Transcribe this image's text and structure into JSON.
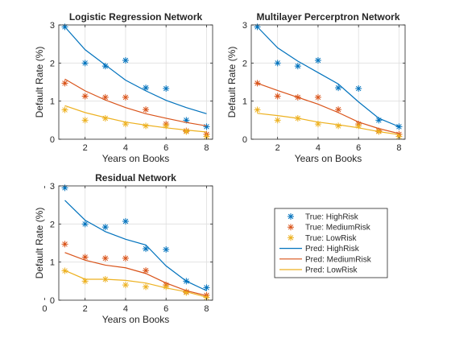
{
  "colors": {
    "high": "#0072BD",
    "medium": "#D95319",
    "low": "#EDB120",
    "grid": "#dfdfdf",
    "axis": "#262626"
  },
  "legend": {
    "placement": "bottom-right",
    "entries": [
      {
        "label": "True: HighRisk",
        "style": "marker",
        "series": "high"
      },
      {
        "label": "True: MediumRisk",
        "style": "marker",
        "series": "medium"
      },
      {
        "label": "True: LowRisk",
        "style": "marker",
        "series": "low"
      },
      {
        "label": "Pred: HighRisk",
        "style": "line",
        "series": "high"
      },
      {
        "label": "Pred: MediumRisk",
        "style": "line",
        "series": "medium"
      },
      {
        "label": "Pred: LowRisk",
        "style": "line",
        "series": "low"
      }
    ]
  },
  "chart_data": [
    {
      "type": "line",
      "title": "Logistic Regression Network",
      "xlabel": "Years on Books",
      "ylabel": "Default Rate (%)",
      "xlim": [
        0.7,
        8.3
      ],
      "ylim": [
        0,
        3
      ],
      "xticks": [
        2,
        4,
        6,
        8
      ],
      "yticks": [
        0,
        1,
        2,
        3
      ],
      "grid": true,
      "x": [
        1,
        2,
        3,
        4,
        5,
        6,
        7,
        8
      ],
      "series": [
        {
          "name": "True: HighRisk",
          "kind": "marker",
          "color": "high",
          "values": [
            2.95,
            2.0,
            1.92,
            2.07,
            1.35,
            1.33,
            0.5,
            0.33
          ]
        },
        {
          "name": "True: MediumRisk",
          "kind": "marker",
          "color": "medium",
          "values": [
            1.47,
            1.13,
            1.1,
            1.1,
            0.78,
            0.4,
            0.22,
            0.13
          ]
        },
        {
          "name": "True: LowRisk",
          "kind": "marker",
          "color": "low",
          "values": [
            0.77,
            0.5,
            0.55,
            0.4,
            0.35,
            0.35,
            0.2,
            0.07
          ]
        },
        {
          "name": "Pred: HighRisk",
          "kind": "line",
          "color": "high",
          "values": [
            2.95,
            2.35,
            1.95,
            1.55,
            1.27,
            1.02,
            0.83,
            0.67
          ]
        },
        {
          "name": "Pred: MediumRisk",
          "kind": "line",
          "color": "medium",
          "values": [
            1.58,
            1.27,
            1.03,
            0.83,
            0.67,
            0.55,
            0.44,
            0.35
          ]
        },
        {
          "name": "Pred: LowRisk",
          "kind": "line",
          "color": "low",
          "values": [
            0.88,
            0.7,
            0.57,
            0.45,
            0.37,
            0.3,
            0.24,
            0.19
          ]
        }
      ]
    },
    {
      "type": "line",
      "title": "Multilayer Percerptron Network",
      "xlabel": "Years on Books",
      "ylabel": "Default Rate (%)",
      "xlim": [
        0.7,
        8.3
      ],
      "ylim": [
        0,
        3
      ],
      "xticks": [
        2,
        4,
        6,
        8
      ],
      "yticks": [
        0,
        1,
        2,
        3
      ],
      "grid": true,
      "x": [
        1,
        2,
        3,
        4,
        5,
        6,
        7,
        8
      ],
      "series": [
        {
          "name": "True: HighRisk",
          "kind": "marker",
          "color": "high",
          "values": [
            2.95,
            2.0,
            1.92,
            2.07,
            1.35,
            1.33,
            0.5,
            0.33
          ]
        },
        {
          "name": "True: MediumRisk",
          "kind": "marker",
          "color": "medium",
          "values": [
            1.47,
            1.13,
            1.1,
            1.1,
            0.78,
            0.4,
            0.22,
            0.13
          ]
        },
        {
          "name": "True: LowRisk",
          "kind": "marker",
          "color": "low",
          "values": [
            0.77,
            0.5,
            0.55,
            0.4,
            0.35,
            0.35,
            0.2,
            0.07
          ]
        },
        {
          "name": "Pred: HighRisk",
          "kind": "line",
          "color": "high",
          "values": [
            2.95,
            2.4,
            2.05,
            1.75,
            1.45,
            0.98,
            0.55,
            0.33
          ]
        },
        {
          "name": "Pred: MediumRisk",
          "kind": "line",
          "color": "medium",
          "values": [
            1.47,
            1.28,
            1.1,
            0.92,
            0.7,
            0.45,
            0.28,
            0.15
          ]
        },
        {
          "name": "Pred: LowRisk",
          "kind": "line",
          "color": "low",
          "values": [
            0.68,
            0.62,
            0.55,
            0.45,
            0.38,
            0.3,
            0.2,
            0.12
          ]
        }
      ]
    },
    {
      "type": "line",
      "title": "Residual Network",
      "xlabel": "Years on Books",
      "ylabel": "Default Rate (%)",
      "xlim": [
        0.7,
        8.3
      ],
      "ylim": [
        0,
        3
      ],
      "xticks": [
        0,
        2,
        4,
        6,
        8
      ],
      "yticks": [
        0,
        1,
        2,
        3
      ],
      "grid": true,
      "x": [
        1,
        2,
        3,
        4,
        5,
        6,
        7,
        8
      ],
      "series": [
        {
          "name": "True: HighRisk",
          "kind": "marker",
          "color": "high",
          "values": [
            2.95,
            2.0,
            1.92,
            2.07,
            1.35,
            1.33,
            0.5,
            0.33
          ]
        },
        {
          "name": "True: MediumRisk",
          "kind": "marker",
          "color": "medium",
          "values": [
            1.47,
            1.13,
            1.1,
            1.1,
            0.78,
            0.4,
            0.22,
            0.13
          ]
        },
        {
          "name": "True: LowRisk",
          "kind": "marker",
          "color": "low",
          "values": [
            0.77,
            0.5,
            0.55,
            0.4,
            0.35,
            0.35,
            0.2,
            0.07
          ]
        },
        {
          "name": "Pred: HighRisk",
          "kind": "line",
          "color": "high",
          "values": [
            2.62,
            2.1,
            1.8,
            1.6,
            1.45,
            0.9,
            0.5,
            0.25
          ]
        },
        {
          "name": "Pred: MediumRisk",
          "kind": "line",
          "color": "medium",
          "values": [
            1.25,
            1.05,
            0.92,
            0.85,
            0.7,
            0.45,
            0.25,
            0.12
          ]
        },
        {
          "name": "Pred: LowRisk",
          "kind": "line",
          "color": "low",
          "values": [
            0.78,
            0.55,
            0.55,
            0.52,
            0.45,
            0.32,
            0.22,
            0.08
          ]
        }
      ]
    }
  ]
}
